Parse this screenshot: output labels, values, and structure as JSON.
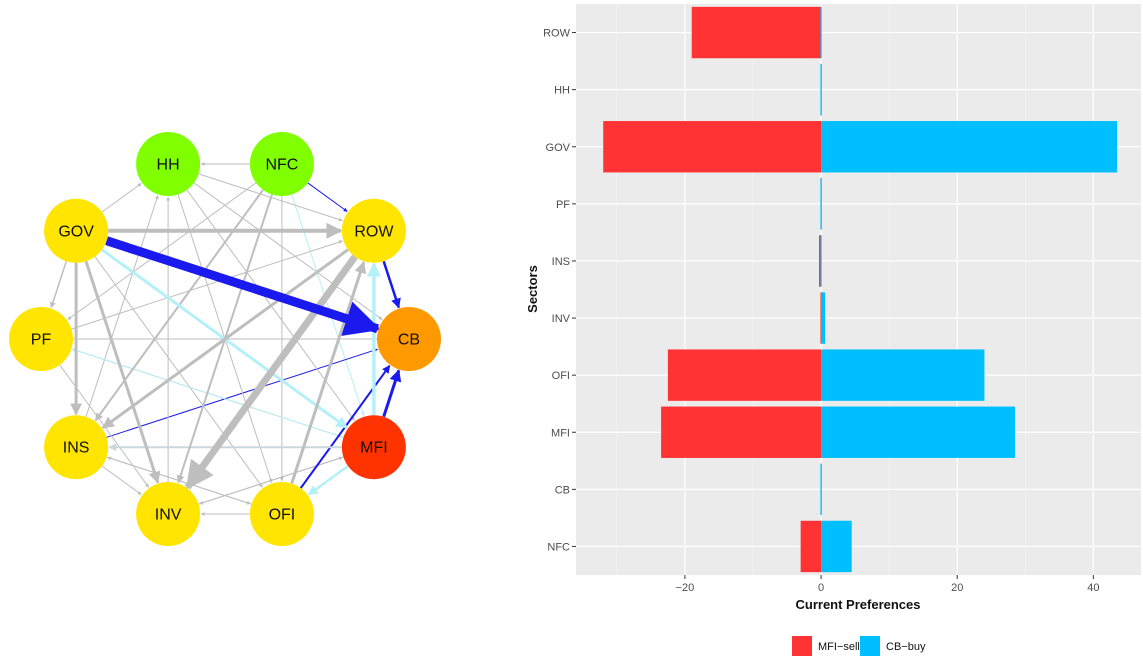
{
  "network": {
    "nodes": [
      {
        "id": "HH",
        "color": "#7fff00"
      },
      {
        "id": "NFC",
        "color": "#7fff00"
      },
      {
        "id": "ROW",
        "color": "#ffe500"
      },
      {
        "id": "CB",
        "color": "#ff9900"
      },
      {
        "id": "MFI",
        "color": "#ff3300"
      },
      {
        "id": "OFI",
        "color": "#ffe500"
      },
      {
        "id": "INV",
        "color": "#ffe500"
      },
      {
        "id": "INS",
        "color": "#ffe500"
      },
      {
        "id": "PF",
        "color": "#ffe500"
      },
      {
        "id": "GOV",
        "color": "#ffe500"
      }
    ],
    "edges": [
      {
        "from": "GOV",
        "to": "CB",
        "color": "#1a1aee",
        "weight": 9
      },
      {
        "from": "GOV",
        "to": "ROW",
        "color": "#bebebe",
        "weight": 4
      },
      {
        "from": "GOV",
        "to": "INS",
        "color": "#bebebe",
        "weight": 3
      },
      {
        "from": "GOV",
        "to": "INV",
        "color": "#bebebe",
        "weight": 3
      },
      {
        "from": "GOV",
        "to": "MFI",
        "color": "#b4f0f8",
        "weight": 3
      },
      {
        "from": "GOV",
        "to": "PF",
        "color": "#bebebe",
        "weight": 1.5
      },
      {
        "from": "GOV",
        "to": "OFI",
        "color": "#bebebe",
        "weight": 1
      },
      {
        "from": "GOV",
        "to": "HH",
        "color": "#bebebe",
        "weight": 1
      },
      {
        "from": "ROW",
        "to": "INV",
        "color": "#bebebe",
        "weight": 7
      },
      {
        "from": "ROW",
        "to": "INS",
        "color": "#bebebe",
        "weight": 3
      },
      {
        "from": "ROW",
        "to": "CB",
        "color": "#1a1aee",
        "weight": 2.5
      },
      {
        "from": "ROW",
        "to": "GOV",
        "color": "#bebebe",
        "weight": 1
      },
      {
        "from": "OFI",
        "to": "ROW",
        "color": "#bebebe",
        "weight": 3
      },
      {
        "from": "OFI",
        "to": "CB",
        "color": "#1a1aee",
        "weight": 2
      },
      {
        "from": "OFI",
        "to": "INV",
        "color": "#bebebe",
        "weight": 1
      },
      {
        "from": "MFI",
        "to": "CB",
        "color": "#1a1aee",
        "weight": 3
      },
      {
        "from": "MFI",
        "to": "ROW",
        "color": "#b4f0f8",
        "weight": 3.5
      },
      {
        "from": "MFI",
        "to": "OFI",
        "color": "#b4f0f8",
        "weight": 2.5
      },
      {
        "from": "MFI",
        "to": "INS",
        "color": "#c8d8dc",
        "weight": 2
      },
      {
        "from": "MFI",
        "to": "INV",
        "color": "#bebebe",
        "weight": 1
      },
      {
        "from": "MFI",
        "to": "PF",
        "color": "#bebebe",
        "weight": 1
      },
      {
        "from": "NFC",
        "to": "ROW",
        "color": "#1a1aee",
        "weight": 1
      },
      {
        "from": "NFC",
        "to": "INS",
        "color": "#bebebe",
        "weight": 2
      },
      {
        "from": "NFC",
        "to": "INV",
        "color": "#bebebe",
        "weight": 2
      },
      {
        "from": "NFC",
        "to": "MFI",
        "color": "#b4f0f8",
        "weight": 1
      },
      {
        "from": "NFC",
        "to": "PF",
        "color": "#bebebe",
        "weight": 1
      },
      {
        "from": "NFC",
        "to": "HH",
        "color": "#bebebe",
        "weight": 1
      },
      {
        "from": "NFC",
        "to": "OFI",
        "color": "#bebebe",
        "weight": 1
      },
      {
        "from": "INS",
        "to": "CB",
        "color": "#1a1aee",
        "weight": 1
      },
      {
        "from": "INS",
        "to": "ROW",
        "color": "#bebebe",
        "weight": 1
      },
      {
        "from": "INS",
        "to": "OFI",
        "color": "#bebebe",
        "weight": 1
      },
      {
        "from": "INS",
        "to": "HH",
        "color": "#bebebe",
        "weight": 1
      },
      {
        "from": "INS",
        "to": "INV",
        "color": "#bebebe",
        "weight": 1
      },
      {
        "from": "PF",
        "to": "CB",
        "color": "#bebebe",
        "weight": 1
      },
      {
        "from": "PF",
        "to": "ROW",
        "color": "#bebebe",
        "weight": 1
      },
      {
        "from": "PF",
        "to": "INV",
        "color": "#bebebe",
        "weight": 1
      },
      {
        "from": "PF",
        "to": "MFI",
        "color": "#b4f0f8",
        "weight": 1
      },
      {
        "from": "INV",
        "to": "ROW",
        "color": "#bebebe",
        "weight": 1
      },
      {
        "from": "INV",
        "to": "HH",
        "color": "#bebebe",
        "weight": 1
      },
      {
        "from": "INV",
        "to": "MFI",
        "color": "#bebebe",
        "weight": 1
      },
      {
        "from": "HH",
        "to": "CB",
        "color": "#bebebe",
        "weight": 1
      },
      {
        "from": "HH",
        "to": "MFI",
        "color": "#bebebe",
        "weight": 1
      },
      {
        "from": "HH",
        "to": "OFI",
        "color": "#bebebe",
        "weight": 1
      },
      {
        "from": "HH",
        "to": "ROW",
        "color": "#bebebe",
        "weight": 1
      },
      {
        "from": "CB",
        "to": "PF",
        "color": "#bebebe",
        "weight": 1
      },
      {
        "from": "OFI",
        "to": "INS",
        "color": "#bebebe",
        "weight": 1
      }
    ]
  },
  "chart_data": {
    "type": "bar",
    "orientation": "horizontal",
    "stacked": "diverging",
    "categories": [
      "NFC",
      "CB",
      "MFI",
      "OFI",
      "INV",
      "INS",
      "PF",
      "GOV",
      "HH",
      "ROW"
    ],
    "series": [
      {
        "name": "MFI-sell",
        "color": "#ff3333",
        "values": [
          -3,
          0,
          -23.5,
          -22.5,
          0,
          -0.3,
          0,
          -32,
          0,
          -19
        ]
      },
      {
        "name": "CB-buy",
        "color": "#00bfff",
        "values": [
          4.5,
          0,
          28.5,
          24,
          0.6,
          0,
          0,
          43.5,
          0,
          0
        ]
      }
    ],
    "xlabel": "Current Preferences",
    "ylabel": "Sectors",
    "xlim": [
      -36,
      47
    ],
    "xticks": [
      -20,
      0,
      20,
      40
    ],
    "grid": true,
    "legend_position": "bottom"
  }
}
